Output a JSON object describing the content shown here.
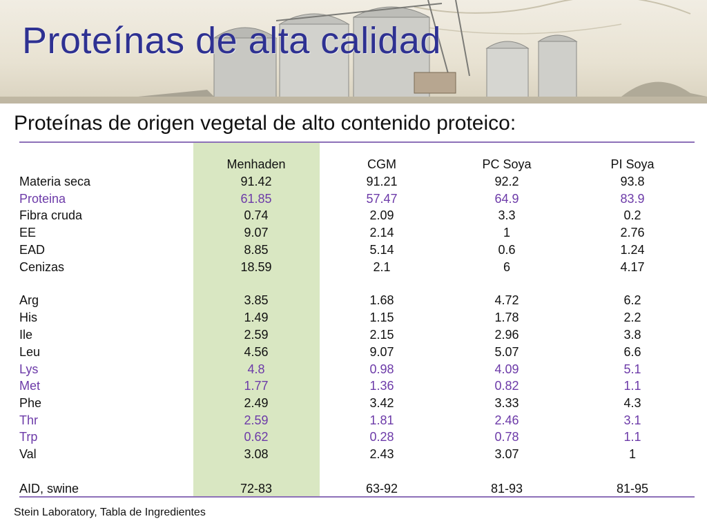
{
  "title": "Proteínas de alta calidad",
  "subtitle": "Proteínas de origen vegetal de alto contenido proteico:",
  "table": {
    "headers": [
      "",
      "Menhaden",
      "CGM",
      "PC Soya",
      "PI Soya"
    ],
    "rows": [
      {
        "label": "Materia seca",
        "values": [
          "91.42",
          "91.21",
          "92.2",
          "93.8"
        ],
        "highlight": false
      },
      {
        "label": "Proteina",
        "values": [
          "61.85",
          "57.47",
          "64.9",
          "83.9"
        ],
        "highlight": true
      },
      {
        "label": "Fibra cruda",
        "values": [
          "0.74",
          "2.09",
          "3.3",
          "0.2"
        ],
        "highlight": false
      },
      {
        "label": "EE",
        "values": [
          "9.07",
          "2.14",
          "1",
          "2.76"
        ],
        "highlight": false
      },
      {
        "label": "EAD",
        "values": [
          "8.85",
          "5.14",
          "0.6",
          "1.24"
        ],
        "highlight": false
      },
      {
        "label": "Cenizas",
        "values": [
          "18.59",
          "2.1",
          "6",
          "4.17"
        ],
        "highlight": false
      },
      {
        "label": "Arg",
        "values": [
          "3.85",
          "1.68",
          "4.72",
          "6.2"
        ],
        "highlight": false
      },
      {
        "label": "His",
        "values": [
          "1.49",
          "1.15",
          "1.78",
          "2.2"
        ],
        "highlight": false
      },
      {
        "label": "Ile",
        "values": [
          "2.59",
          "2.15",
          "2.96",
          "3.8"
        ],
        "highlight": false
      },
      {
        "label": "Leu",
        "values": [
          "4.56",
          "9.07",
          "5.07",
          "6.6"
        ],
        "highlight": false
      },
      {
        "label": "Lys",
        "values": [
          "4.8",
          "0.98",
          "4.09",
          "5.1"
        ],
        "highlight": true
      },
      {
        "label": "Met",
        "values": [
          "1.77",
          "1.36",
          "0.82",
          "1.1"
        ],
        "highlight": true
      },
      {
        "label": "Phe",
        "values": [
          "2.49",
          "3.42",
          "3.33",
          "4.3"
        ],
        "highlight": false
      },
      {
        "label": "Thr",
        "values": [
          "2.59",
          "1.81",
          "2.46",
          "3.1"
        ],
        "highlight": true
      },
      {
        "label": "Trp",
        "values": [
          "0.62",
          "0.28",
          "0.78",
          "1.1"
        ],
        "highlight": true
      },
      {
        "label": "Val",
        "values": [
          "3.08",
          "2.43",
          "3.07",
          "1"
        ],
        "highlight": false
      },
      {
        "label": "AID, swine",
        "values": [
          "72-83",
          "63-92",
          "81-93",
          "81-95"
        ],
        "highlight": false
      }
    ]
  },
  "footer": "Stein Laboratory, Tabla de Ingredientes",
  "colors": {
    "title": "#2e3192",
    "highlight_text": "#6c3aa8",
    "highlight_column": "#d9e7c2",
    "rule": "#8c70b8"
  }
}
